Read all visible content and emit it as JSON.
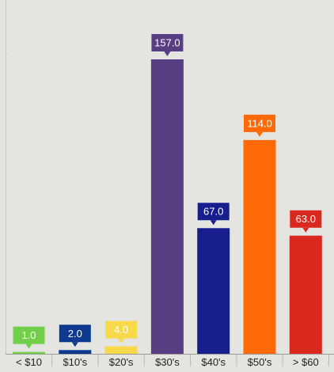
{
  "chart_data": {
    "type": "bar",
    "title": "",
    "xlabel": "",
    "ylabel": "",
    "categories": [
      "< $10",
      "$10's",
      "$20's",
      "$30's",
      "$40's",
      "$50's",
      "> $60"
    ],
    "values": [
      1.0,
      2.0,
      4.0,
      157.0,
      67.0,
      114.0,
      63.0
    ],
    "value_labels": [
      "1.0",
      "2.0",
      "4.0",
      "157.0",
      "67.0",
      "114.0",
      "63.0"
    ],
    "colors": [
      "#72cf4a",
      "#0d3a8e",
      "#f8d94a",
      "#573e83",
      "#171f8f",
      "#ff6a07",
      "#d9281e"
    ],
    "ylim": [
      0,
      160
    ],
    "grid": false,
    "legend": "none"
  }
}
